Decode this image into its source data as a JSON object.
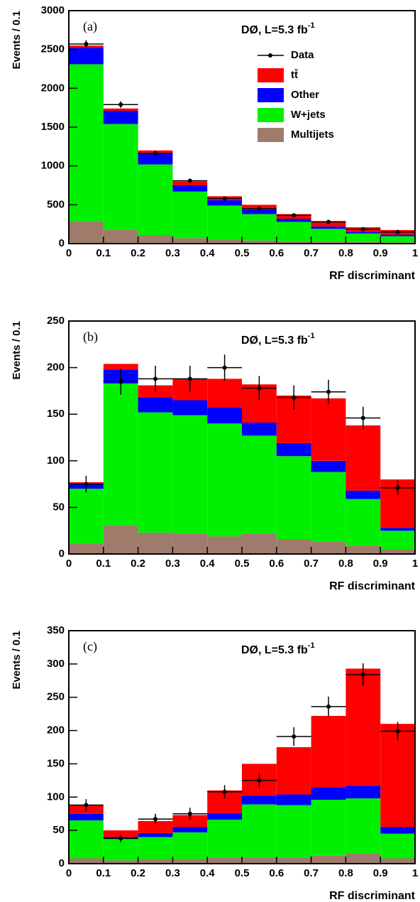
{
  "chart_data": [
    {
      "type": "stacked_histogram",
      "panel_label": "(a)",
      "annotation": "DØ, L=5.3 fb",
      "annotation_sup": "-1",
      "x_label": "RF discriminant",
      "y_label": "Events / 0.1",
      "bins": [
        0,
        0.1,
        0.2,
        0.3,
        0.4,
        0.5,
        0.6,
        0.7,
        0.8,
        0.9,
        1
      ],
      "xlim": [
        0,
        1
      ],
      "xticks": [
        0,
        0.1,
        0.2,
        0.3,
        0.4,
        0.5,
        0.6,
        0.7,
        0.8,
        0.9,
        1
      ],
      "ylim": [
        0,
        3000
      ],
      "yticks": [
        0,
        500,
        1000,
        1500,
        2000,
        2500,
        3000
      ],
      "legend": true,
      "series": [
        {
          "name": "Multijets",
          "color": "#9e7b6b",
          "values": [
            290,
            180,
            110,
            70,
            50,
            40,
            30,
            25,
            20,
            15
          ]
        },
        {
          "name": "W+jets",
          "color": "#00f000",
          "values": [
            2020,
            1360,
            910,
            600,
            440,
            340,
            250,
            165,
            110,
            80
          ]
        },
        {
          "name": "Other",
          "color": "#0000ff",
          "values": [
            210,
            170,
            140,
            80,
            70,
            60,
            40,
            30,
            20,
            20
          ]
        },
        {
          "name": "tt̄",
          "color": "#ff0000",
          "values": [
            30,
            30,
            40,
            50,
            50,
            60,
            60,
            70,
            60,
            60
          ]
        }
      ],
      "data": {
        "name": "Data",
        "color": "#000000",
        "values": [
          2570,
          1790,
          1160,
          810,
          580,
          450,
          365,
          280,
          185,
          150
        ],
        "errors": [
          50,
          42,
          34,
          28,
          24,
          21,
          19,
          17,
          14,
          12
        ]
      }
    },
    {
      "type": "stacked_histogram",
      "panel_label": "(b)",
      "annotation": "DØ, L=5.3 fb",
      "annotation_sup": "-1",
      "x_label": "RF discriminant",
      "y_label": "Events / 0.1",
      "bins": [
        0,
        0.1,
        0.2,
        0.3,
        0.4,
        0.5,
        0.6,
        0.7,
        0.8,
        0.9,
        1
      ],
      "xlim": [
        0,
        1
      ],
      "xticks": [
        0,
        0.1,
        0.2,
        0.3,
        0.4,
        0.5,
        0.6,
        0.7,
        0.8,
        0.9,
        1
      ],
      "ylim": [
        0,
        250
      ],
      "yticks": [
        0,
        50,
        100,
        150,
        200,
        250
      ],
      "legend": false,
      "series": [
        {
          "color": "#9e7b6b",
          "values": [
            11,
            31,
            23,
            22,
            19,
            22,
            16,
            13,
            9,
            5
          ]
        },
        {
          "color": "#00f000",
          "values": [
            59,
            152,
            129,
            127,
            121,
            105,
            89,
            75,
            50,
            20
          ]
        },
        {
          "color": "#0000ff",
          "values": [
            5,
            15,
            16,
            16,
            17,
            14,
            14,
            12,
            9,
            3
          ]
        },
        {
          "color": "#ff0000",
          "values": [
            2,
            6,
            13,
            23,
            31,
            41,
            51,
            67,
            70,
            52
          ]
        }
      ],
      "data": {
        "color": "#000000",
        "values": [
          75,
          185,
          188,
          188,
          200,
          178,
          168,
          174,
          146,
          71
        ],
        "errors": [
          9,
          14,
          14,
          14,
          14,
          13,
          13,
          13,
          12,
          8
        ]
      }
    },
    {
      "type": "stacked_histogram",
      "panel_label": "(c)",
      "annotation": "DØ, L=5.3 fb",
      "annotation_sup": "-1",
      "x_label": "RF discriminant",
      "y_label": "Events / 0.1",
      "bins": [
        0,
        0.1,
        0.2,
        0.3,
        0.4,
        0.5,
        0.6,
        0.7,
        0.8,
        0.9,
        1
      ],
      "xlim": [
        0,
        1
      ],
      "xticks": [
        0,
        0.1,
        0.2,
        0.3,
        0.4,
        0.5,
        0.6,
        0.7,
        0.8,
        0.9,
        1
      ],
      "ylim": [
        0,
        350
      ],
      "yticks": [
        0,
        50,
        100,
        150,
        200,
        250,
        300,
        350
      ],
      "legend": false,
      "series": [
        {
          "color": "#9e7b6b",
          "values": [
            8,
            5,
            7,
            7,
            9,
            9,
            9,
            12,
            15,
            8
          ]
        },
        {
          "color": "#00f000",
          "values": [
            57,
            32,
            33,
            40,
            57,
            80,
            79,
            84,
            83,
            37
          ]
        },
        {
          "color": "#0000ff",
          "values": [
            10,
            3,
            6,
            8,
            10,
            13,
            16,
            19,
            19,
            10
          ]
        },
        {
          "color": "#ff0000",
          "values": [
            13,
            10,
            18,
            18,
            34,
            48,
            71,
            107,
            176,
            155
          ]
        }
      ],
      "data": {
        "color": "#000000",
        "values": [
          88,
          38,
          67,
          75,
          108,
          125,
          191,
          236,
          284,
          199
        ],
        "errors": [
          9,
          6,
          8,
          9,
          10,
          11,
          14,
          15,
          17,
          14
        ]
      }
    }
  ]
}
